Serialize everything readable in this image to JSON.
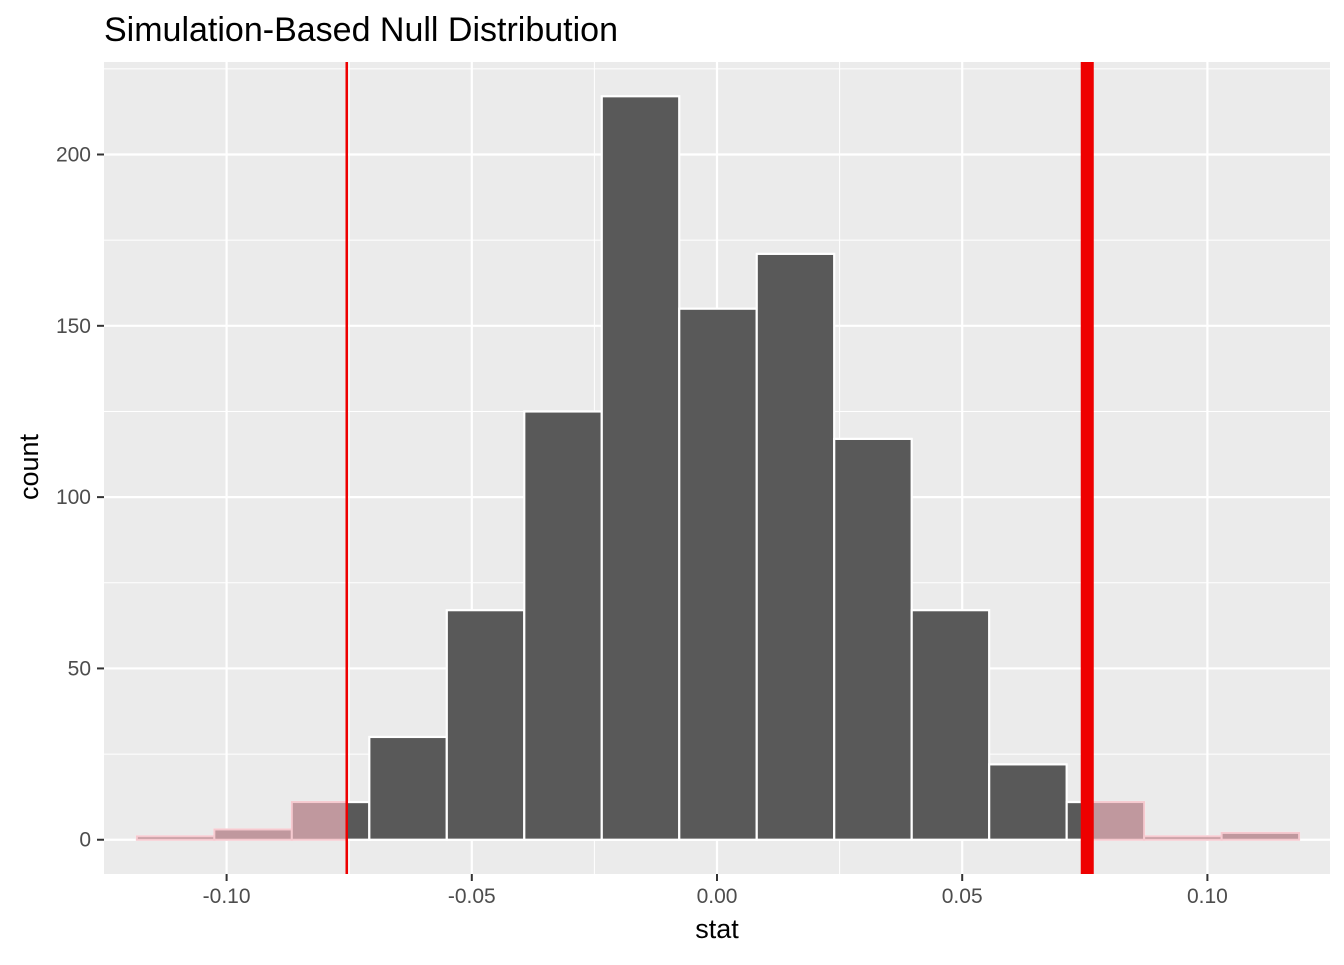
{
  "chart_data": {
    "type": "bar",
    "title": "Simulation-Based Null Distribution",
    "xlabel": "stat",
    "ylabel": "count",
    "xlim": [
      -0.125,
      0.125
    ],
    "ylim": [
      -10,
      227
    ],
    "x_ticks": [
      -0.1,
      -0.05,
      0.0,
      0.05,
      0.1
    ],
    "x_tick_labels": [
      "-0.10",
      "-0.05",
      "0.00",
      "0.05",
      "0.10"
    ],
    "y_ticks": [
      0,
      50,
      100,
      150,
      200
    ],
    "y_tick_labels": [
      "0",
      "50",
      "100",
      "150",
      "200"
    ],
    "grid": true,
    "bin_width": 0.0158,
    "bins": [
      {
        "center": -0.1104,
        "count": 1
      },
      {
        "center": -0.0946,
        "count": 3
      },
      {
        "center": -0.0788,
        "count": 11
      },
      {
        "center": -0.063,
        "count": 30
      },
      {
        "center": -0.0472,
        "count": 67
      },
      {
        "center": -0.0314,
        "count": 125
      },
      {
        "center": -0.0156,
        "count": 217
      },
      {
        "center": 0.0002,
        "count": 155
      },
      {
        "center": 0.016,
        "count": 171
      },
      {
        "center": 0.0318,
        "count": 117
      },
      {
        "center": 0.0476,
        "count": 67
      },
      {
        "center": 0.0634,
        "count": 22
      },
      {
        "center": 0.0792,
        "count": 11
      },
      {
        "center": 0.095,
        "count": 1
      },
      {
        "center": 0.1108,
        "count": 2
      }
    ],
    "observed_stat": 0.0755,
    "mirror_stat": -0.0755,
    "shaded_region": "both tails beyond ±0.0755",
    "colors": {
      "panel_background": "#ebebeb",
      "grid": "#ffffff",
      "bar_fill": "#595959",
      "bar_outline": "#ffffff",
      "shade_fill": "#c0989e",
      "shade_outline": "#f6c9cf",
      "observed_line": "#ee0000",
      "tick_text": "#4d4d4d"
    }
  }
}
